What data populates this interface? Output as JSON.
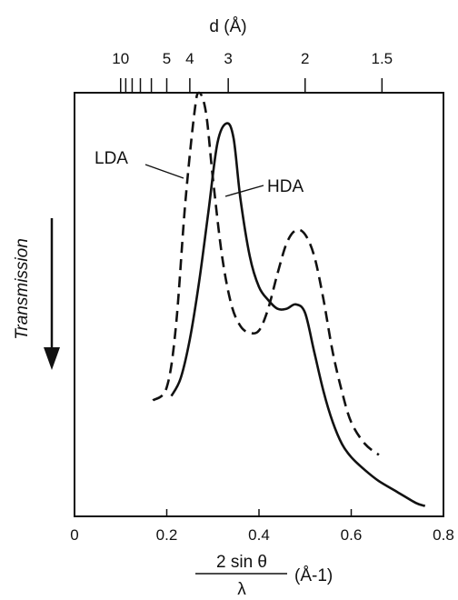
{
  "chart_data": {
    "type": "line",
    "title": "",
    "xlabel": {
      "numerator": "2 sin θ",
      "denominator": "λ",
      "unit": "(Å-1)"
    },
    "ylabel": "Transmission",
    "top_axis_label": "d (Å)",
    "xlim": [
      0,
      0.8
    ],
    "x_ticks": [
      0,
      0.2,
      0.4,
      0.6,
      0.8
    ],
    "x_tick_labels": [
      "0",
      "0.2",
      "0.4",
      "0.6",
      "0.8"
    ],
    "top_ticks_d": [
      10,
      9,
      8,
      7,
      6,
      5,
      4,
      3,
      2,
      1.5
    ],
    "top_tick_labels": [
      {
        "d": 10,
        "text": "10"
      },
      {
        "d": 5,
        "text": "5"
      },
      {
        "d": 4,
        "text": "4"
      },
      {
        "d": 3,
        "text": "3"
      },
      {
        "d": 2,
        "text": "2"
      },
      {
        "d": 1.5,
        "text": "1.5"
      }
    ],
    "y_units": "arbitrary (transmission decreases downward)",
    "ylim": [
      0,
      1
    ],
    "grid": false,
    "series": [
      {
        "name": "LDA",
        "style": "dashed",
        "points": [
          [
            0.17,
            0.27
          ],
          [
            0.2,
            0.3
          ],
          [
            0.22,
            0.44
          ],
          [
            0.24,
            0.72
          ],
          [
            0.26,
            0.93
          ],
          [
            0.27,
            0.975
          ],
          [
            0.285,
            0.93
          ],
          [
            0.3,
            0.78
          ],
          [
            0.32,
            0.6
          ],
          [
            0.34,
            0.49
          ],
          [
            0.36,
            0.44
          ],
          [
            0.38,
            0.425
          ],
          [
            0.4,
            0.43
          ],
          [
            0.42,
            0.48
          ],
          [
            0.44,
            0.56
          ],
          [
            0.46,
            0.63
          ],
          [
            0.48,
            0.66
          ],
          [
            0.5,
            0.65
          ],
          [
            0.52,
            0.6
          ],
          [
            0.54,
            0.5
          ],
          [
            0.56,
            0.38
          ],
          [
            0.58,
            0.29
          ],
          [
            0.6,
            0.22
          ],
          [
            0.63,
            0.17
          ],
          [
            0.66,
            0.145
          ]
        ]
      },
      {
        "name": "HDA",
        "style": "solid",
        "points": [
          [
            0.21,
            0.28
          ],
          [
            0.23,
            0.32
          ],
          [
            0.25,
            0.41
          ],
          [
            0.27,
            0.54
          ],
          [
            0.29,
            0.7
          ],
          [
            0.31,
            0.86
          ],
          [
            0.33,
            0.905
          ],
          [
            0.345,
            0.87
          ],
          [
            0.36,
            0.73
          ],
          [
            0.38,
            0.6
          ],
          [
            0.4,
            0.53
          ],
          [
            0.42,
            0.5
          ],
          [
            0.44,
            0.48
          ],
          [
            0.46,
            0.48
          ],
          [
            0.48,
            0.49
          ],
          [
            0.5,
            0.47
          ],
          [
            0.52,
            0.38
          ],
          [
            0.54,
            0.29
          ],
          [
            0.56,
            0.22
          ],
          [
            0.58,
            0.17
          ],
          [
            0.6,
            0.14
          ],
          [
            0.63,
            0.11
          ],
          [
            0.66,
            0.085
          ],
          [
            0.7,
            0.06
          ],
          [
            0.74,
            0.035
          ],
          [
            0.76,
            0.028
          ]
        ]
      }
    ],
    "annotations": [
      {
        "text": "LDA",
        "target_series": "LDA"
      },
      {
        "text": "HDA",
        "target_series": "HDA"
      }
    ],
    "arrow_direction": "down"
  }
}
